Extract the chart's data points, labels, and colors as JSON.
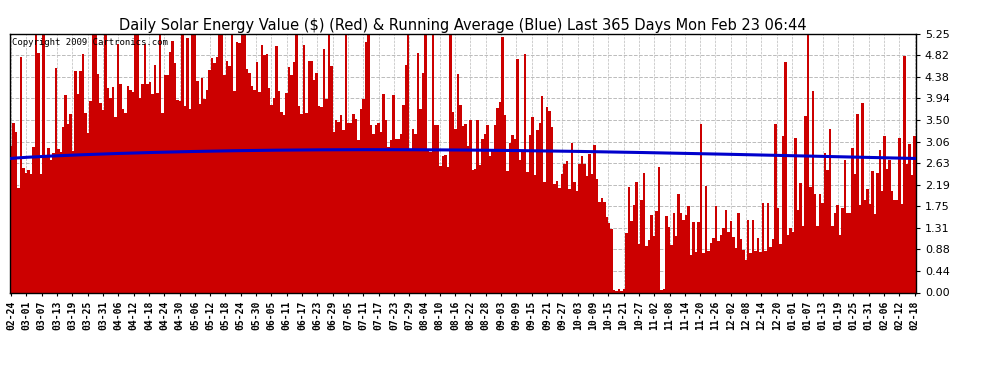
{
  "title": "Daily Solar Energy Value ($) (Red) & Running Average (Blue) Last 365 Days Mon Feb 23 06:44",
  "copyright_text": "Copyright 2009 Cartronics.com",
  "yticks": [
    0.0,
    0.44,
    0.88,
    1.31,
    1.75,
    2.19,
    2.63,
    3.06,
    3.5,
    3.94,
    4.38,
    4.82,
    5.25
  ],
  "ylim": [
    0,
    5.25
  ],
  "bar_color": "#cc0000",
  "avg_color": "#0000cc",
  "bg_color": "#ffffff",
  "grid_color": "#bbbbbb",
  "title_color": "#000000",
  "title_fontsize": 10.5,
  "xtick_labels": [
    "02-24",
    "03-01",
    "03-07",
    "03-13",
    "03-19",
    "03-25",
    "03-31",
    "04-06",
    "04-12",
    "04-18",
    "04-24",
    "04-30",
    "05-06",
    "05-12",
    "05-18",
    "05-24",
    "05-30",
    "06-05",
    "06-11",
    "06-17",
    "06-23",
    "06-29",
    "07-05",
    "07-11",
    "07-17",
    "07-23",
    "07-29",
    "08-04",
    "08-10",
    "08-16",
    "08-22",
    "08-28",
    "09-03",
    "09-09",
    "09-15",
    "09-21",
    "09-27",
    "10-03",
    "10-09",
    "10-15",
    "10-21",
    "10-27",
    "11-02",
    "11-08",
    "11-14",
    "11-20",
    "11-26",
    "12-02",
    "12-08",
    "12-14",
    "12-20",
    "01-01",
    "01-07",
    "01-13",
    "01-19",
    "01-25",
    "01-31",
    "02-06",
    "02-12",
    "02-18"
  ]
}
